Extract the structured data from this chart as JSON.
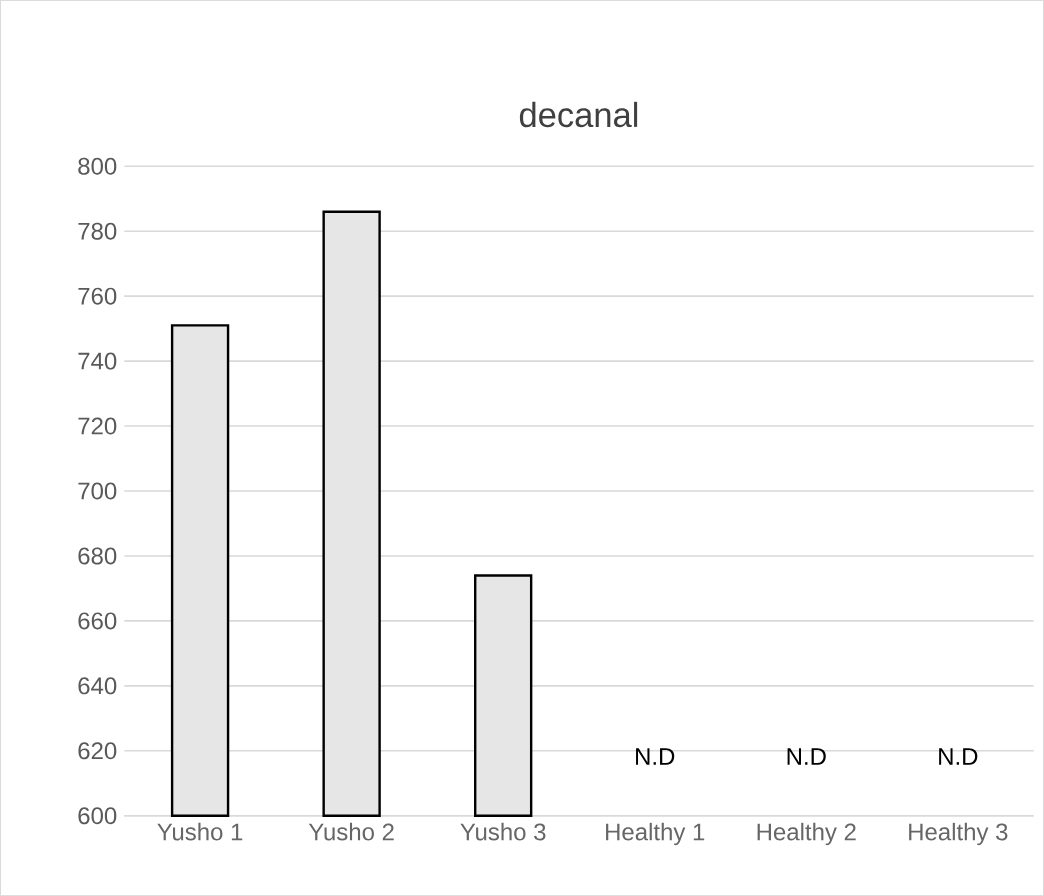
{
  "chart_data": {
    "type": "bar",
    "title": "decanal",
    "categories": [
      "Yusho 1",
      "Yusho 2",
      "Yusho 3",
      "Healthy 1",
      "Healthy 2",
      "Healthy 3"
    ],
    "values": [
      751,
      786,
      674,
      null,
      null,
      null
    ],
    "value_labels": [
      null,
      null,
      null,
      "N.D",
      "N.D",
      "N.D"
    ],
    "color": "#e6e6e6",
    "ylim": [
      600,
      800
    ],
    "yticks": [
      600,
      620,
      640,
      660,
      680,
      700,
      720,
      740,
      760,
      780,
      800
    ],
    "grid": "y"
  }
}
